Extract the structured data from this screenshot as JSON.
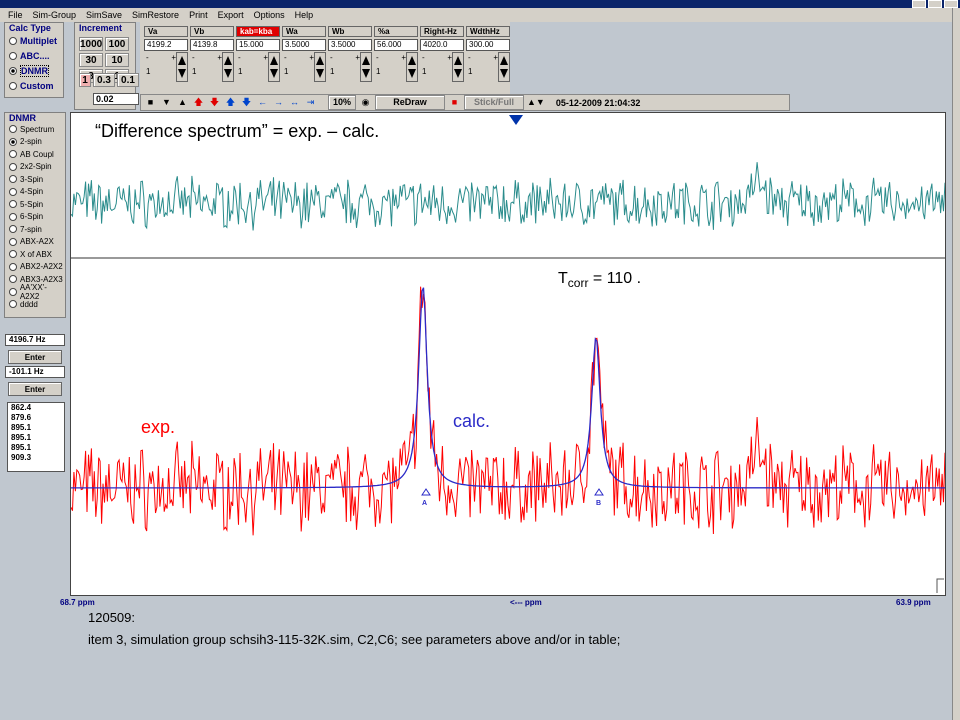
{
  "menu": [
    "File",
    "Sim-Group",
    "SimSave",
    "SimRestore",
    "Print",
    "Export",
    "Options",
    "Help"
  ],
  "calc_type": {
    "title": "Calc Type",
    "options": [
      "Multiplet",
      "ABC....",
      "DNMR",
      "Custom"
    ],
    "selected": 2
  },
  "increment": {
    "title": "Increment",
    "buttons": [
      "1000",
      "100",
      "30",
      "10",
      "3",
      "1",
      "0.3",
      "0.1"
    ],
    "selected": "1",
    "value": "0.02"
  },
  "params": [
    {
      "label": "Va",
      "value": "4199.2",
      "step": "1"
    },
    {
      "label": "Vb",
      "value": "4139.8",
      "step": "1"
    },
    {
      "label": "kab=kba",
      "value": "15.000",
      "step": "1"
    },
    {
      "label": "Wa",
      "value": "3.5000",
      "step": "1"
    },
    {
      "label": "Wb",
      "value": "3.5000",
      "step": "1"
    },
    {
      "label": "%a",
      "value": "56.000",
      "step": "1"
    },
    {
      "label": "Right-Hz",
      "value": "4020.0",
      "step": "1"
    },
    {
      "label": "WdthHz",
      "value": "300.00",
      "step": "1"
    }
  ],
  "toolbar": {
    "zoom": "10%",
    "redraw": "ReDraw",
    "stick": "Stick/Full",
    "date": "05-12-2009  21:04:32"
  },
  "dnmr": {
    "title": "DNMR",
    "options": [
      "Spectrum",
      "2-spin",
      "AB Coupl",
      "2x2-Spin",
      "3-Spin",
      "4-Spin",
      "5-Spin",
      "6-Spin",
      "7-spin",
      "ABX-A2X",
      "X of ABX",
      "ABX2-A2X2",
      "ABX3-A2X3",
      "AA'XX'-A2X2",
      "dddd"
    ],
    "selected": 1
  },
  "freq1": "4196.7 Hz",
  "enter_label": "Enter",
  "freq2": "-101.1 Hz",
  "peak_list": [
    "862.4",
    "879.6",
    "895.1",
    "895.1",
    "895.1",
    "909.3"
  ],
  "annotations": {
    "difference": "“Difference spectrum” = exp. – calc.",
    "tcorr_base": "T",
    "tcorr_sub": "corr",
    "tcorr_value": " = 110  .",
    "exp": "exp.",
    "calc": "calc.",
    "peak_a": "A",
    "peak_b": "B"
  },
  "axis": {
    "left": "68.7 ppm",
    "center": "<--- ppm",
    "right": "63.9 ppm"
  },
  "note": {
    "line1": "120509:",
    "line2": "item 3, simulation group schsih3-115-32K.sim,  C2,C6; see parameters above and/or in table;"
  },
  "chart_data": {
    "type": "line",
    "xlabel": "<--- ppm",
    "x_range_ppm": [
      68.7,
      63.9
    ],
    "x_range_hz": [
      4320,
      4020
    ],
    "series": [
      {
        "name": "exp.",
        "color": "#ff0000",
        "description_peaks": [
          {
            "x_hz": 4199.2,
            "height": 0.74
          },
          {
            "x_hz": 4139.8,
            "height": 0.55
          }
        ]
      },
      {
        "name": "calc.",
        "color": "#2b2bc8",
        "peaks": [
          {
            "x_hz": 4199.2,
            "height": 0.78,
            "fwhm_hz": 3.5
          },
          {
            "x_hz": 4139.8,
            "height": 0.58,
            "fwhm_hz": 3.5
          }
        ]
      },
      {
        "name": "Difference spectrum",
        "color": "#2a8c8c"
      }
    ],
    "peak_labels": [
      "A",
      "B"
    ]
  },
  "colors": {
    "exp": "#ff0000",
    "calc": "#2b2bc8",
    "diff": "#2a8c8c",
    "panel": "#d4d0c8",
    "bg": "#c0c7cf",
    "title": "#0a246a"
  }
}
